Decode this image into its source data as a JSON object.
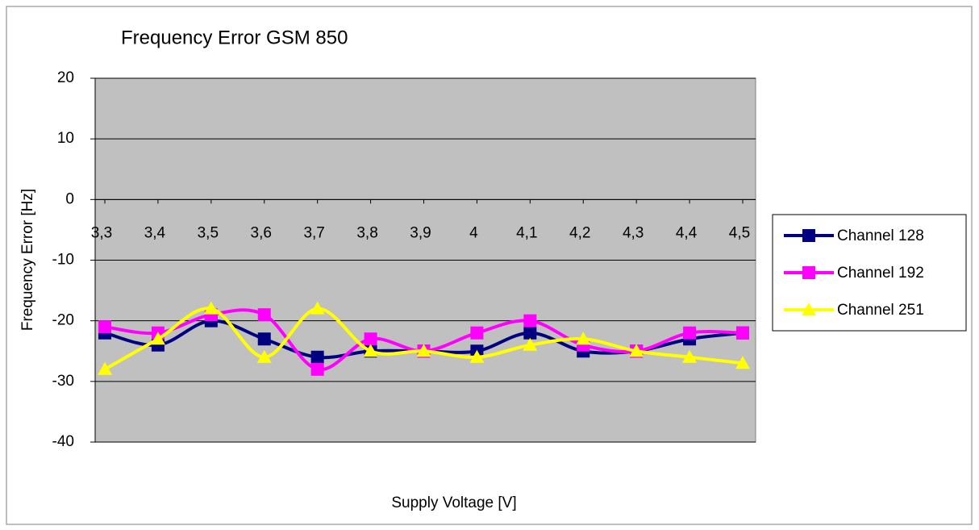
{
  "chart_data": {
    "type": "line",
    "title": "Frequency Error GSM 850",
    "x_label": "Supply Voltage [V]",
    "y_label": "Frequency Error [Hz]",
    "categories": [
      "3,3",
      "3,4",
      "3,5",
      "3,6",
      "3,7",
      "3,8",
      "3,9",
      "4",
      "4,1",
      "4,2",
      "4,3",
      "4,4",
      "4,5"
    ],
    "series": [
      {
        "name": "Channel 128",
        "color": "#000080",
        "marker": "square",
        "values": [
          -22,
          -24,
          -20,
          -23,
          -26,
          -25,
          -25,
          -25,
          -22,
          -25,
          -25,
          -23,
          -22
        ]
      },
      {
        "name": "Channel 192",
        "color": "#ff00ff",
        "marker": "square",
        "values": [
          -21,
          -22,
          -19,
          -19,
          -28,
          -23,
          -25,
          -22,
          -20,
          -24,
          -25,
          -22,
          -22
        ]
      },
      {
        "name": "Channel 251",
        "color": "#ffff00",
        "marker": "triangle",
        "values": [
          -28,
          -23,
          -18,
          -26,
          -18,
          -25,
          -25,
          -26,
          -24,
          -23,
          -25,
          -26,
          -27
        ]
      }
    ],
    "smooth": true,
    "ylim": [
      -40,
      20
    ],
    "yticks": [
      -40,
      -30,
      -20,
      -10,
      0,
      10,
      20
    ],
    "grid": true,
    "plot_background": "#c0c0c0",
    "legend": "right"
  }
}
